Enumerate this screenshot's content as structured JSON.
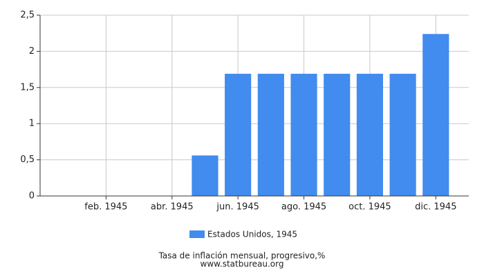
{
  "chart_data": {
    "type": "bar",
    "categories": [
      null,
      "feb. 1945",
      null,
      "abr. 1945",
      null,
      "jun. 1945",
      null,
      "ago. 1945",
      null,
      "oct. 1945",
      null,
      "dic. 1945"
    ],
    "series": [
      {
        "name": "Estados Unidos, 1945",
        "color": "#428bef",
        "values": [
          0,
          0,
          0,
          0,
          0.56,
          1.69,
          1.69,
          1.69,
          1.69,
          1.69,
          1.69,
          2.24
        ]
      }
    ],
    "ylim": [
      0,
      2.5
    ],
    "yticks": [
      0,
      {
        "value": 0.5,
        "label": "0,5"
      },
      1,
      {
        "value": 1.5,
        "label": "1,5"
      },
      2,
      {
        "value": 2.5,
        "label": "2,5"
      }
    ],
    "grid": true,
    "footer": [
      "Tasa de inflación mensual, progresivo,%",
      "www.statbureau.org"
    ]
  }
}
